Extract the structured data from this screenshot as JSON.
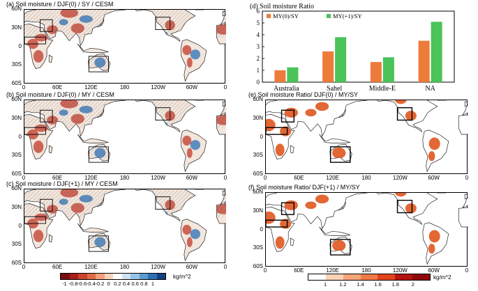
{
  "colors": {
    "bar_my0": "#ee7b3a",
    "bar_my1": "#49c35a",
    "dry": "#c0392b",
    "wet": "#2c6fb5",
    "ratio": "#e0561f",
    "land": "#f3e6dc"
  },
  "left_panels": [
    {
      "title": "(a) Soil moisture / DJF(0) / SY / CESM"
    },
    {
      "title": "(b) Soil moisture / DJF(0) / MY / CESM"
    },
    {
      "title": "(c) Soil moisture / DJF(+1) / MY / CESM"
    }
  ],
  "right_panels": [
    {
      "title": "(e) Soil moisture Ratio/ DJF(0) / MY/SY"
    },
    {
      "title": "(f) Soil moisture Ratio/ DJF(+1) / MY/SY"
    }
  ],
  "map_axes": {
    "y_ticks": [
      "60N",
      "30N",
      "0",
      "30S",
      "60S"
    ],
    "x_ticks": [
      "0",
      "60E",
      "120E",
      "180",
      "120W",
      "60W",
      "0"
    ]
  },
  "colorbar_left": {
    "labels": [
      "-1",
      "-0.8",
      "-0.6",
      "-0.4",
      "-0.2",
      "0",
      "0.2",
      "0.4",
      "0.6",
      "0.8",
      "1"
    ],
    "colors": [
      "#7a0c0c",
      "#a81c1c",
      "#c9432c",
      "#e06b45",
      "#f0a07a",
      "#f8d2bd",
      "#ffffff",
      "#cfe2f2",
      "#97c3e6",
      "#5a9bd0",
      "#2c6fb5",
      "#163f80"
    ],
    "units": "kg/m^2"
  },
  "colorbar_right": {
    "labels": [
      "1",
      "1.2",
      "1.4",
      "1.6",
      "1.8",
      "2"
    ],
    "colors": [
      "#ffffff",
      "#fbd3b6",
      "#f7a679",
      "#f07a45",
      "#e0451f",
      "#b4150f",
      "#8e0a08"
    ],
    "units": "kg/m^2"
  },
  "chart_data": {
    "type": "bar",
    "title": "(d) Soil moisture Ratio",
    "chart_title": "Soil moisture Ratio",
    "panel_label": "(d)",
    "categories": [
      "Australia",
      "Sahel",
      "Middle-E",
      "NA"
    ],
    "series": [
      {
        "name": "MY(0)/SY",
        "values": [
          1.0,
          2.6,
          1.7,
          3.5
        ]
      },
      {
        "name": "MY(+1)/SY",
        "values": [
          1.25,
          3.8,
          2.1,
          5.1
        ]
      }
    ],
    "ylim": [
      0,
      6
    ],
    "yticks": [
      0,
      1,
      2,
      3,
      4,
      5,
      6
    ],
    "xlabel": "",
    "ylabel": "",
    "legend": "top-left"
  }
}
